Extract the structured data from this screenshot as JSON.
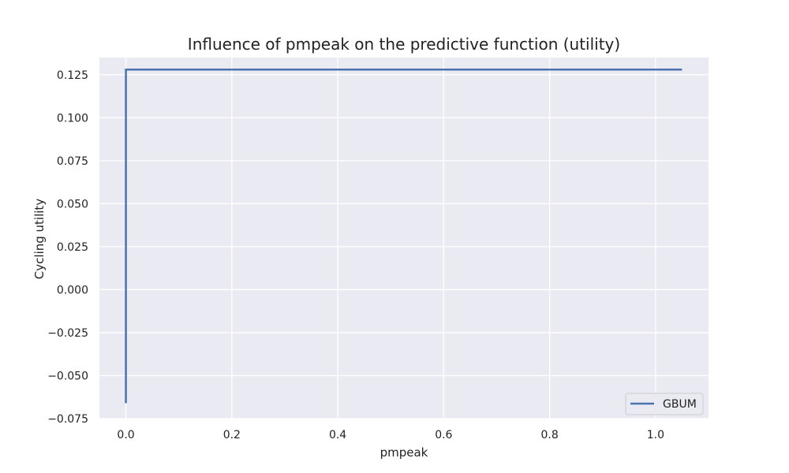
{
  "chart_data": {
    "type": "line",
    "title": "Influence of pmpeak on the predictive function (utility)",
    "xlabel": "pmpeak",
    "ylabel": "Cycling utility",
    "xlim": [
      -0.05,
      1.1
    ],
    "ylim": [
      -0.075,
      0.135
    ],
    "x_ticks": [
      0.0,
      0.2,
      0.4,
      0.6,
      0.8,
      1.0
    ],
    "x_tick_labels": [
      "0.0",
      "0.2",
      "0.4",
      "0.6",
      "0.8",
      "1.0"
    ],
    "y_ticks": [
      0.125,
      0.1,
      0.075,
      0.05,
      0.025,
      0.0,
      -0.025,
      -0.05,
      -0.075
    ],
    "y_tick_labels": [
      "0.125",
      "0.100",
      "0.075",
      "0.050",
      "0.025",
      "0.000",
      "−0.025",
      "−0.050",
      "−0.075"
    ],
    "grid": true,
    "legend_position": "bottom-right",
    "series": [
      {
        "name": "GBUM",
        "color": "#4c72b0",
        "x": [
          0.0,
          0.0,
          1.05
        ],
        "y": [
          -0.066,
          0.128,
          0.128
        ]
      }
    ],
    "colors": {
      "plot_background": "#eaeaf2",
      "grid": "#ffffff"
    }
  }
}
